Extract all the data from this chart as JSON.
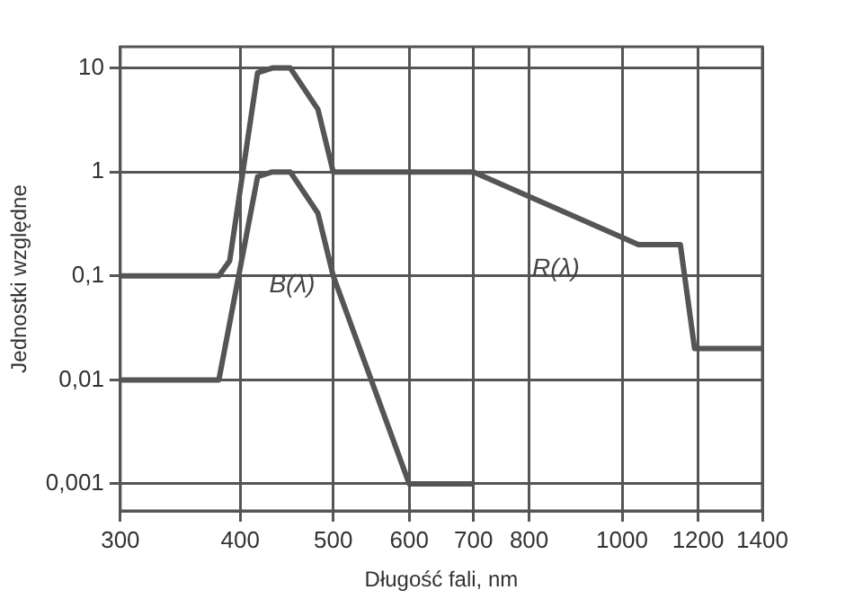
{
  "chart_data": {
    "type": "line",
    "xlabel": "Długość fali, nm",
    "ylabel": "Jednostki względne",
    "log": "xy",
    "grid": true,
    "legend": false,
    "marker": "none",
    "line_style": "solid",
    "xlim": [
      300,
      1400
    ],
    "xticks": [
      300,
      400,
      500,
      600,
      700,
      800,
      1000,
      1200,
      1400
    ],
    "ylim": [
      0.00055,
      16
    ],
    "yticks": [
      {
        "value": 0.001,
        "label": "0,001"
      },
      {
        "value": 0.01,
        "label": "0,01"
      },
      {
        "value": 0.1,
        "label": "0,1"
      },
      {
        "value": 1,
        "label": "1"
      },
      {
        "value": 10,
        "label": "10"
      }
    ],
    "series": [
      {
        "name": "R(λ)",
        "color": "#555555",
        "x": [
          300,
          380,
          390,
          417,
          432,
          451,
          482,
          500,
          700,
          1040,
          1150,
          1190,
          1400
        ],
        "values": [
          0.1,
          0.1,
          0.14,
          9,
          10,
          10,
          4,
          1,
          1,
          0.2,
          0.2,
          0.02,
          0.02
        ]
      },
      {
        "name": "B(λ)",
        "color": "#555555",
        "x": [
          300,
          380,
          417,
          432,
          451,
          482,
          500,
          600,
          700
        ],
        "values": [
          0.01,
          0.01,
          0.9,
          1,
          1,
          0.4,
          0.1,
          0.001,
          0.001
        ]
      }
    ]
  }
}
